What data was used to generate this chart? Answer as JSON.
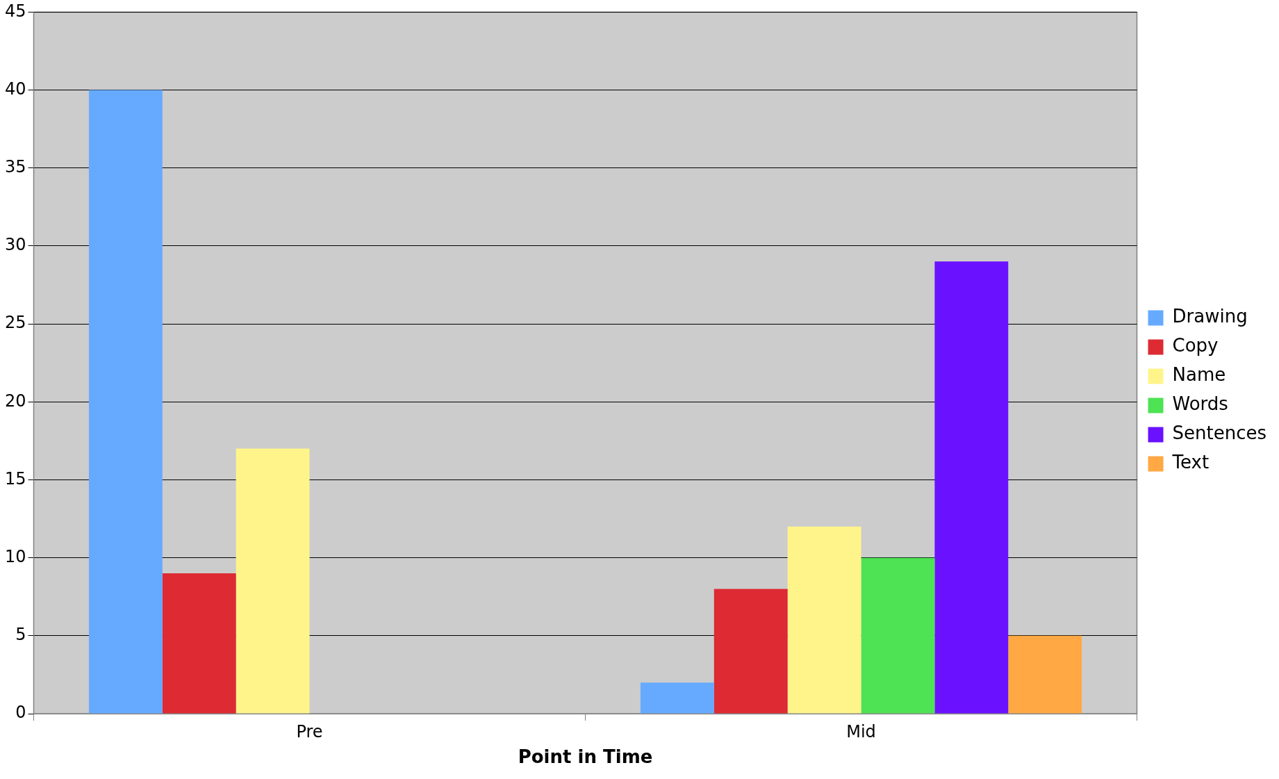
{
  "chart_data": {
    "type": "bar",
    "xlabel": "Point in Time",
    "categories": [
      "Pre",
      "Mid"
    ],
    "series": [
      {
        "name": "Drawing",
        "color": "#66aaff",
        "values": [
          40,
          2
        ]
      },
      {
        "name": "Copy",
        "color": "#dd2a33",
        "values": [
          9,
          8
        ]
      },
      {
        "name": "Name",
        "color": "#fff48a",
        "values": [
          17,
          12
        ]
      },
      {
        "name": "Words",
        "color": "#4ee255",
        "values": [
          null,
          10
        ]
      },
      {
        "name": "Sentences",
        "color": "#6a11ff",
        "values": [
          null,
          29
        ]
      },
      {
        "name": "Text",
        "color": "#ffa844",
        "values": [
          null,
          5
        ]
      }
    ],
    "ylim": [
      0,
      45
    ],
    "yticks": [
      0,
      5,
      10,
      15,
      20,
      25,
      30,
      35,
      40,
      45
    ],
    "grid": "y",
    "legend": "right"
  }
}
